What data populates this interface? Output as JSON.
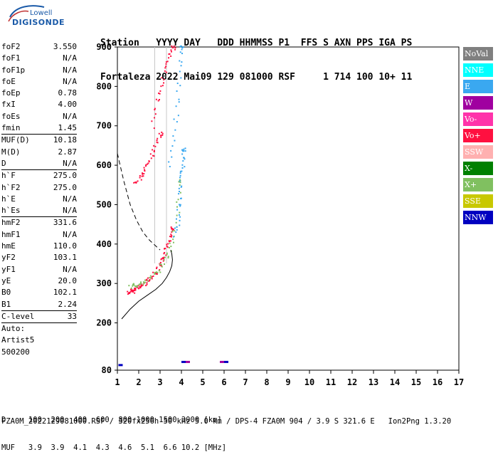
{
  "logo": {
    "top": "Lowell",
    "main": "DIGISONDE"
  },
  "header": {
    "line1": "Station   YYYY DAY   DDD HHMMSS P1  FFS S AXN PPS IGA PS",
    "line2": "Fortaleza 2022 Mai09 129 081000 RSF     1 714 100 10+ 11"
  },
  "params": [
    {
      "k": "foF2",
      "v": "3.550"
    },
    {
      "k": "foF1",
      "v": "N/A"
    },
    {
      "k": "foF1p",
      "v": "N/A"
    },
    {
      "k": "foE",
      "v": "N/A"
    },
    {
      "k": "foEp",
      "v": "0.78"
    },
    {
      "k": "fxI",
      "v": "4.00"
    },
    {
      "k": "foEs",
      "v": "N/A"
    },
    {
      "k": "fmin",
      "v": "1.45"
    },
    {
      "sep": true
    },
    {
      "k": "MUF(D)",
      "v": "10.18"
    },
    {
      "k": "M(D)",
      "v": "2.87"
    },
    {
      "k": "D",
      "v": "N/A"
    },
    {
      "sep": true
    },
    {
      "k": "h`F",
      "v": "275.0"
    },
    {
      "k": "h`F2",
      "v": "275.0"
    },
    {
      "k": "h`E",
      "v": "N/A"
    },
    {
      "k": "h`Es",
      "v": "N/A"
    },
    {
      "sep": true
    },
    {
      "k": "hmF2",
      "v": "331.6"
    },
    {
      "k": "hmF1",
      "v": "N/A"
    },
    {
      "k": "hmE",
      "v": "110.0"
    },
    {
      "k": "yF2",
      "v": "103.1"
    },
    {
      "k": "yF1",
      "v": "N/A"
    },
    {
      "k": "yE",
      "v": "20.0"
    },
    {
      "k": "B0",
      "v": "102.1"
    },
    {
      "k": "B1",
      "v": "2.24"
    },
    {
      "sep": true
    },
    {
      "k": "C-level",
      "v": "33"
    },
    {
      "sep": true
    },
    {
      "k": "Auto:",
      "v": ""
    },
    {
      "k": "Artist5",
      "v": ""
    },
    {
      "k": "500200",
      "v": ""
    }
  ],
  "legend": [
    {
      "label": "NoVal",
      "color": "#808080"
    },
    {
      "label": "NNE",
      "color": "#00ffff"
    },
    {
      "label": "E",
      "color": "#3aa8f0"
    },
    {
      "label": "W",
      "color": "#a000a0"
    },
    {
      "label": "Vo-",
      "color": "#ff33aa"
    },
    {
      "label": "Vo+",
      "color": "#ff1040"
    },
    {
      "label": "SSW",
      "color": "#ffb0b0"
    },
    {
      "label": "X-",
      "color": "#008000"
    },
    {
      "label": "X+",
      "color": "#80c060"
    },
    {
      "label": "SSE",
      "color": "#c8c800"
    },
    {
      "label": "NNW",
      "color": "#0000c0"
    }
  ],
  "footer": {
    "row1": "D     100  200  400  600  800 1000 1500 3000 [km]",
    "row2": "MUF   3.9  3.9  4.1  4.3  4.6  5.1  6.6 10.2 [MHz]",
    "row3": "FZA0M_2022129081000.RSF / 320fx256h 50 kHz 5.0 km / DPS-4 FZA0M 904 / 3.9 S 321.6 E   Ion2Png 1.3.20"
  },
  "chart_data": {
    "type": "scatter",
    "x_ticks": [
      "1",
      "2",
      "3",
      "4",
      "5",
      "6",
      "7",
      "8",
      "9",
      "10",
      "11",
      "12",
      "13",
      "14",
      "15",
      "16",
      "17"
    ],
    "y_ticks": [
      "80",
      "200",
      "300",
      "400",
      "500",
      "600",
      "700",
      "800",
      "900"
    ],
    "xlim": [
      1,
      17
    ],
    "ylim": [
      80,
      900
    ],
    "grid": false,
    "legend_placement": "right",
    "traces": [
      {
        "channel": "Vo+",
        "x": [
          1.5,
          1.6,
          1.7,
          1.8,
          1.9,
          2.0,
          2.2,
          2.4,
          2.6,
          2.8,
          3.0,
          3.1,
          3.2,
          3.3,
          3.4,
          3.5
        ],
        "y": [
          278,
          280,
          283,
          287,
          290,
          293,
          300,
          310,
          318,
          330,
          345,
          360,
          375,
          395,
          415,
          440
        ]
      },
      {
        "channel": "X+",
        "x": [
          1.6,
          1.8,
          2.0,
          2.3,
          2.6,
          2.9,
          3.2,
          3.4,
          3.6,
          3.8,
          3.9
        ],
        "y": [
          295,
          296,
          298,
          305,
          318,
          335,
          360,
          385,
          420,
          480,
          560
        ]
      },
      {
        "channel": "E",
        "x": [
          3.7,
          3.8,
          3.9,
          3.95,
          4.0,
          4.05,
          4.1
        ],
        "y": [
          420,
          460,
          500,
          540,
          580,
          610,
          640
        ]
      },
      {
        "channel": "Vo+",
        "x": [
          1.8,
          2.0,
          2.2,
          2.4,
          2.6,
          2.8,
          3.0
        ],
        "y": [
          555,
          568,
          585,
          605,
          625,
          650,
          680
        ]
      },
      {
        "channel": "Vo+",
        "x": [
          2.6,
          2.8,
          3.0,
          3.2,
          3.4,
          3.6
        ],
        "y": [
          700,
          760,
          800,
          840,
          870,
          900
        ]
      },
      {
        "channel": "E",
        "x": [
          3.4,
          3.6,
          3.8,
          3.9,
          4.0
        ],
        "y": [
          600,
          680,
          760,
          840,
          900
        ]
      }
    ],
    "profile_curve": {
      "x": [
        1.2,
        1.6,
        2.0,
        2.4,
        2.8,
        3.1,
        3.3,
        3.45,
        3.55,
        3.58,
        3.55,
        3.5
      ],
      "y": [
        210,
        235,
        255,
        270,
        285,
        300,
        315,
        330,
        345,
        360,
        375,
        385
      ]
    },
    "dashed_curve": {
      "x": [
        1.0,
        1.3,
        1.6,
        1.9,
        2.2,
        2.5,
        2.8,
        3.0
      ],
      "y": [
        630,
        560,
        500,
        460,
        430,
        410,
        395,
        385
      ]
    },
    "small_marks": [
      {
        "channel": "NNW",
        "x": 1.15,
        "y": 92
      },
      {
        "channel": "NNW",
        "x": 4.1,
        "y": 100
      },
      {
        "channel": "W",
        "x": 4.3,
        "y": 100
      },
      {
        "channel": "W",
        "x": 5.9,
        "y": 100
      },
      {
        "channel": "NNW",
        "x": 6.1,
        "y": 100
      }
    ]
  }
}
